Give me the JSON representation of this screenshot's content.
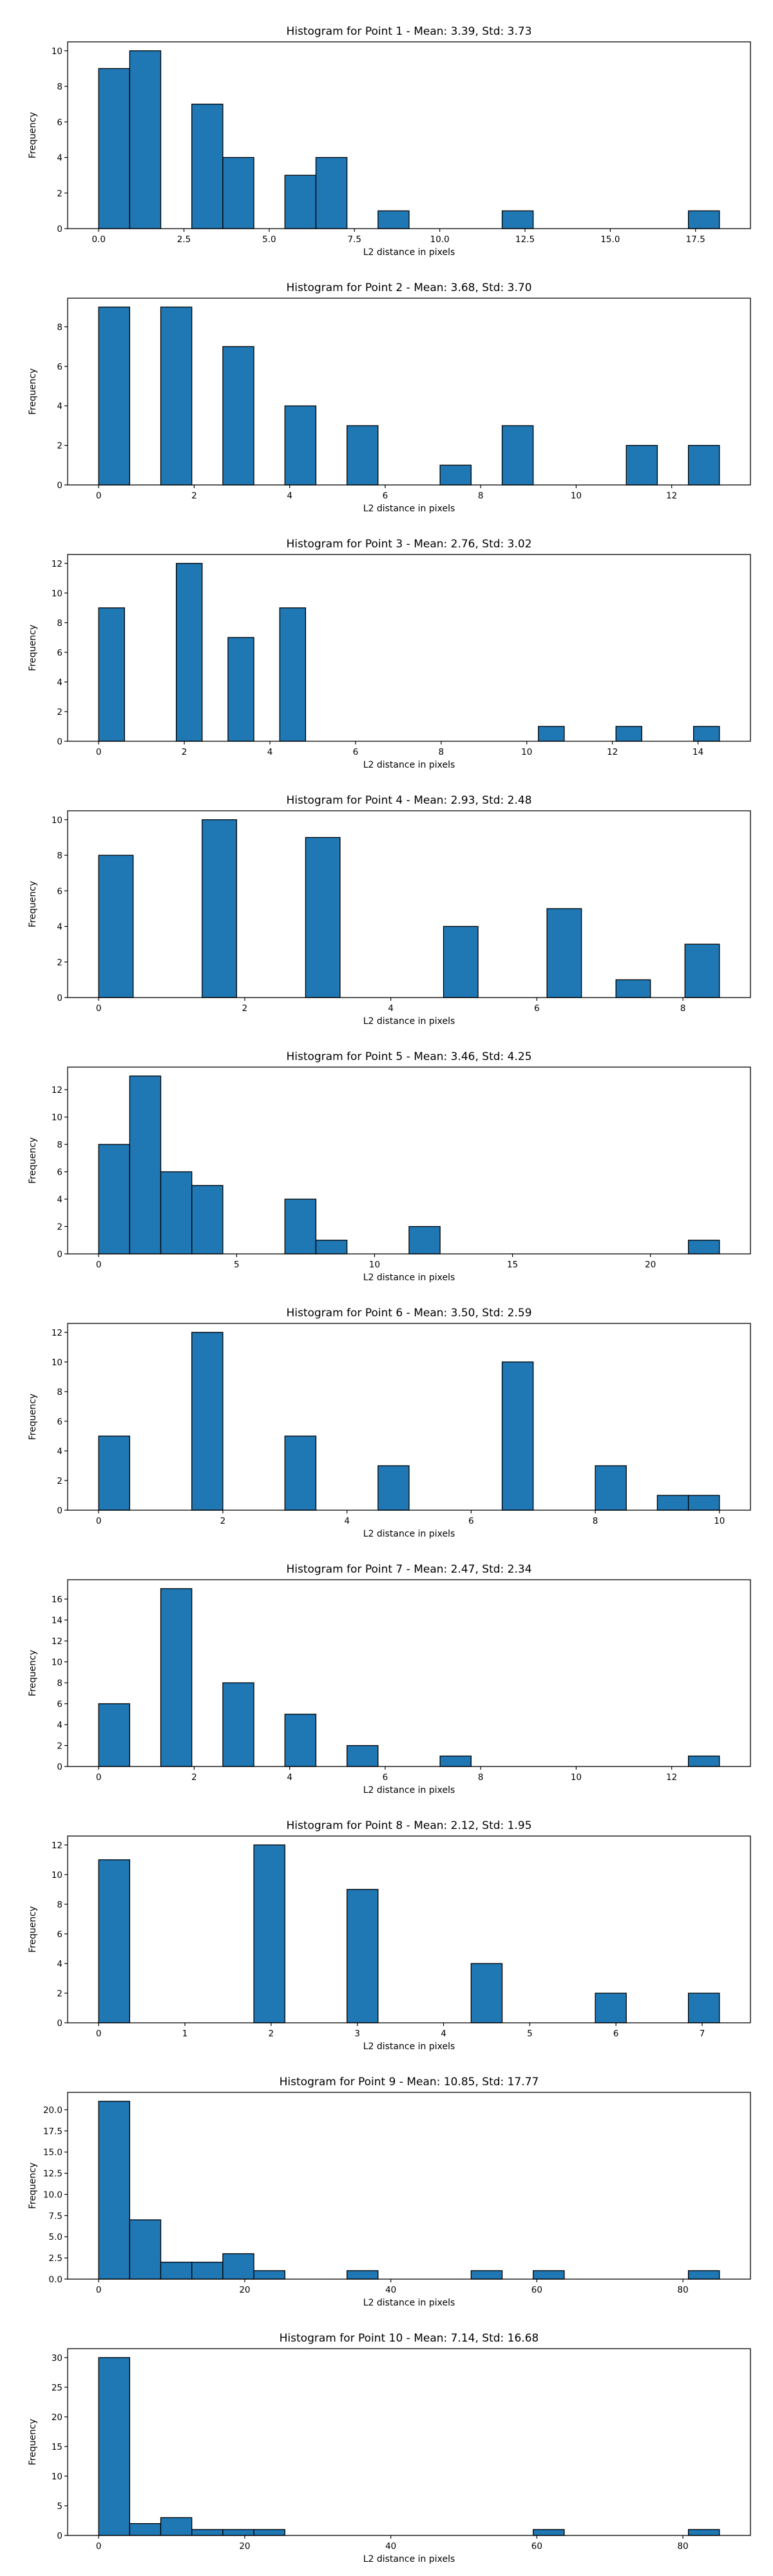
{
  "chart_data": [
    {
      "type": "histogram",
      "title": "Histogram for Point 1 - Mean: 3.39, Std: 3.73",
      "xlabel": "L2 distance in pixels",
      "ylabel": "Frequency",
      "x_range": [
        0.0,
        18.2
      ],
      "xlim": [
        -0.91,
        19.11
      ],
      "ylim": [
        0,
        10.5
      ],
      "xticks": [
        0,
        2.5,
        5.0,
        7.5,
        10.0,
        12.5,
        15.0,
        17.5
      ],
      "xtick_labels": [
        "0.0",
        "2.5",
        "5.0",
        "7.5",
        "10.0",
        "12.5",
        "15.0",
        "17.5"
      ],
      "yticks": [
        0,
        2,
        4,
        6,
        8,
        10
      ],
      "ytick_labels": [
        "0",
        "2",
        "4",
        "6",
        "8",
        "10"
      ],
      "values": [
        9,
        10,
        0,
        7,
        4,
        0,
        3,
        4,
        0,
        1,
        0,
        0,
        0,
        1,
        0,
        0,
        0,
        0,
        0,
        1
      ]
    },
    {
      "type": "histogram",
      "title": "Histogram for Point 2 - Mean: 3.68, Std: 3.70",
      "xlabel": "L2 distance in pixels",
      "ylabel": "Frequency",
      "x_range": [
        0.0,
        13.0
      ],
      "xlim": [
        -0.65,
        13.65
      ],
      "ylim": [
        0,
        9.45
      ],
      "xticks": [
        0,
        2,
        4,
        6,
        8,
        10,
        12
      ],
      "xtick_labels": [
        "0",
        "2",
        "4",
        "6",
        "8",
        "10",
        "12"
      ],
      "yticks": [
        0,
        2,
        4,
        6,
        8
      ],
      "ytick_labels": [
        "0",
        "2",
        "4",
        "6",
        "8"
      ],
      "values": [
        9,
        0,
        9,
        0,
        7,
        0,
        4,
        0,
        3,
        0,
        0,
        1,
        0,
        3,
        0,
        0,
        0,
        2,
        0,
        2
      ]
    },
    {
      "type": "histogram",
      "title": "Histogram for Point 3 - Mean: 2.76, Std: 3.02",
      "xlabel": "L2 distance in pixels",
      "ylabel": "Frequency",
      "x_range": [
        0.0,
        14.5
      ],
      "xlim": [
        -0.725,
        15.225
      ],
      "ylim": [
        0,
        12.6
      ],
      "xticks": [
        0,
        2,
        4,
        6,
        8,
        10,
        12,
        14
      ],
      "xtick_labels": [
        "0",
        "2",
        "4",
        "6",
        "8",
        "10",
        "12",
        "14"
      ],
      "yticks": [
        0,
        2,
        4,
        6,
        8,
        10,
        12
      ],
      "ytick_labels": [
        "0",
        "2",
        "4",
        "6",
        "8",
        "10",
        "12"
      ],
      "values": [
        9,
        0,
        0,
        12,
        0,
        7,
        0,
        9,
        0,
        0,
        0,
        0,
        0,
        0,
        0,
        0,
        0,
        1,
        0,
        0,
        1,
        0,
        0,
        1
      ]
    },
    {
      "type": "histogram",
      "title": "Histogram for Point 4 - Mean: 2.93, Std: 2.48",
      "xlabel": "L2 distance in pixels",
      "ylabel": "Frequency",
      "x_range": [
        0.0,
        8.5
      ],
      "xlim": [
        -0.425,
        8.925
      ],
      "ylim": [
        0,
        10.5
      ],
      "xticks": [
        0,
        2,
        4,
        6,
        8
      ],
      "xtick_labels": [
        "0",
        "2",
        "4",
        "6",
        "8"
      ],
      "yticks": [
        0,
        2,
        4,
        6,
        8,
        10
      ],
      "ytick_labels": [
        "0",
        "2",
        "4",
        "6",
        "8",
        "10"
      ],
      "values": [
        8,
        0,
        0,
        10,
        0,
        0,
        9,
        0,
        0,
        0,
        4,
        0,
        0,
        5,
        0,
        1,
        0,
        3
      ]
    },
    {
      "type": "histogram",
      "title": "Histogram for Point 5 - Mean: 3.46, Std: 4.25",
      "xlabel": "L2 distance in pixels",
      "ylabel": "Frequency",
      "x_range": [
        0.0,
        22.5
      ],
      "xlim": [
        -1.125,
        23.625
      ],
      "ylim": [
        0,
        13.65
      ],
      "xticks": [
        0,
        5,
        10,
        15,
        20
      ],
      "xtick_labels": [
        "0",
        "5",
        "10",
        "15",
        "20"
      ],
      "yticks": [
        0,
        2,
        4,
        6,
        8,
        10,
        12
      ],
      "ytick_labels": [
        "0",
        "2",
        "4",
        "6",
        "8",
        "10",
        "12"
      ],
      "values": [
        8,
        13,
        6,
        5,
        0,
        0,
        4,
        1,
        0,
        0,
        2,
        0,
        0,
        0,
        0,
        0,
        0,
        0,
        0,
        1
      ]
    },
    {
      "type": "histogram",
      "title": "Histogram for Point 6 - Mean: 3.50, Std: 2.59",
      "xlabel": "L2 distance in pixels",
      "ylabel": "Frequency",
      "x_range": [
        0.0,
        10.0
      ],
      "xlim": [
        -0.5,
        10.5
      ],
      "ylim": [
        0,
        12.6
      ],
      "xticks": [
        0,
        2,
        4,
        6,
        8,
        10
      ],
      "xtick_labels": [
        "0",
        "2",
        "4",
        "6",
        "8",
        "10"
      ],
      "yticks": [
        0,
        2,
        4,
        6,
        8,
        10,
        12
      ],
      "ytick_labels": [
        "0",
        "2",
        "4",
        "6",
        "8",
        "10",
        "12"
      ],
      "values": [
        5,
        0,
        0,
        12,
        0,
        0,
        5,
        0,
        0,
        3,
        0,
        0,
        0,
        10,
        0,
        0,
        3,
        0,
        1,
        1
      ]
    },
    {
      "type": "histogram",
      "title": "Histogram for Point 7 - Mean: 2.47, Std: 2.34",
      "xlabel": "L2 distance in pixels",
      "ylabel": "Frequency",
      "x_range": [
        0.0,
        13.0
      ],
      "xlim": [
        -0.65,
        13.65
      ],
      "ylim": [
        0,
        17.85
      ],
      "xticks": [
        0,
        2,
        4,
        6,
        8,
        10,
        12
      ],
      "xtick_labels": [
        "0",
        "2",
        "4",
        "6",
        "8",
        "10",
        "12"
      ],
      "yticks": [
        0,
        2,
        4,
        6,
        8,
        10,
        12,
        14,
        16
      ],
      "ytick_labels": [
        "0",
        "2",
        "4",
        "6",
        "8",
        "10",
        "12",
        "14",
        "16"
      ],
      "values": [
        6,
        0,
        17,
        0,
        8,
        0,
        5,
        0,
        2,
        0,
        0,
        1,
        0,
        0,
        0,
        0,
        0,
        0,
        0,
        1
      ]
    },
    {
      "type": "histogram",
      "title": "Histogram for Point 8 - Mean: 2.12, Std: 1.95",
      "xlabel": "L2 distance in pixels",
      "ylabel": "Frequency",
      "x_range": [
        0.0,
        7.2
      ],
      "xlim": [
        -0.36,
        7.56
      ],
      "ylim": [
        0,
        12.6
      ],
      "xticks": [
        0,
        1,
        2,
        3,
        4,
        5,
        6,
        7
      ],
      "xtick_labels": [
        "0",
        "1",
        "2",
        "3",
        "4",
        "5",
        "6",
        "7"
      ],
      "yticks": [
        0,
        2,
        4,
        6,
        8,
        10,
        12
      ],
      "ytick_labels": [
        "0",
        "2",
        "4",
        "6",
        "8",
        "10",
        "12"
      ],
      "values": [
        11,
        0,
        0,
        0,
        0,
        12,
        0,
        0,
        9,
        0,
        0,
        0,
        4,
        0,
        0,
        0,
        2,
        0,
        0,
        2
      ]
    },
    {
      "type": "histogram",
      "title": "Histogram for Point 9 - Mean: 10.85, Std: 17.77",
      "xlabel": "L2 distance in pixels",
      "ylabel": "Frequency",
      "x_range": [
        0.0,
        85.0
      ],
      "xlim": [
        -4.25,
        89.25
      ],
      "ylim": [
        0,
        22.05
      ],
      "xticks": [
        0,
        20,
        40,
        60,
        80
      ],
      "xtick_labels": [
        "0",
        "20",
        "40",
        "60",
        "80"
      ],
      "yticks": [
        0,
        2.5,
        5.0,
        7.5,
        10.0,
        12.5,
        15.0,
        17.5,
        20.0
      ],
      "ytick_labels": [
        "0.0",
        "2.5",
        "5.0",
        "7.5",
        "10.0",
        "12.5",
        "15.0",
        "17.5",
        "20.0"
      ],
      "values": [
        21,
        7,
        2,
        2,
        3,
        1,
        0,
        0,
        1,
        0,
        0,
        0,
        1,
        0,
        1,
        0,
        0,
        0,
        0,
        1
      ]
    },
    {
      "type": "histogram",
      "title": "Histogram for Point 10 - Mean: 7.14, Std: 16.68",
      "xlabel": "L2 distance in pixels",
      "ylabel": "Frequency",
      "x_range": [
        0.0,
        85.0
      ],
      "xlim": [
        -4.25,
        89.25
      ],
      "ylim": [
        0,
        31.5
      ],
      "xticks": [
        0,
        20,
        40,
        60,
        80
      ],
      "xtick_labels": [
        "0",
        "20",
        "40",
        "60",
        "80"
      ],
      "yticks": [
        0,
        5,
        10,
        15,
        20,
        25,
        30
      ],
      "ytick_labels": [
        "0",
        "5",
        "10",
        "15",
        "20",
        "25",
        "30"
      ],
      "values": [
        30,
        2,
        3,
        1,
        1,
        1,
        0,
        0,
        0,
        0,
        0,
        0,
        0,
        0,
        1,
        0,
        0,
        0,
        0,
        1
      ]
    }
  ],
  "colors": {
    "bar_fill": "#1f77b4",
    "bar_edge": "#000000",
    "axes": "#000000"
  }
}
